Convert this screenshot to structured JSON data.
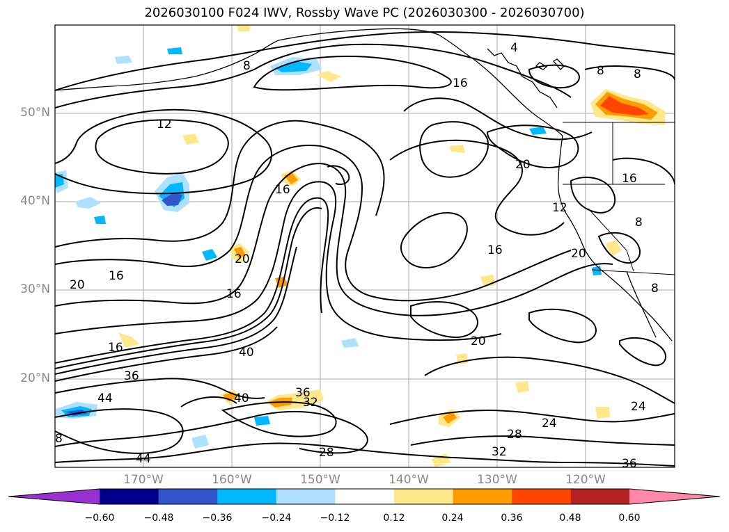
{
  "title": "2026030100 F024 IWV, Rossby Wave PC (2026030300 - 2026030700)",
  "lat_labels": [
    "50°N",
    "40°N",
    "30°N",
    "20°N"
  ],
  "lon_labels": [
    "170°W",
    "160°W",
    "150°W",
    "140°W",
    "130°W",
    "120°W"
  ],
  "colorbar": {
    "ticks": [
      "−0.60",
      "−0.48",
      "−0.36",
      "−0.24",
      "−0.12",
      "0.12",
      "0.24",
      "0.36",
      "0.48",
      "0.60"
    ],
    "colors": [
      "#9b30d0",
      "#00008b",
      "#3355cc",
      "#00b8ff",
      "#aee0ff",
      "#ffffff",
      "#ffe88a",
      "#ff9d00",
      "#ff4500",
      "#b22222",
      "#ff88aa"
    ]
  },
  "contour_labels": [
    "4",
    "8",
    "8",
    "8",
    "12",
    "12",
    "16",
    "16",
    "16",
    "16",
    "16",
    "16",
    "16",
    "20",
    "20",
    "20",
    "20",
    "20",
    "24",
    "24",
    "28",
    "28",
    "32",
    "32",
    "36",
    "36",
    "36",
    "40",
    "40",
    "44",
    "44",
    "8",
    "8",
    "8"
  ]
}
